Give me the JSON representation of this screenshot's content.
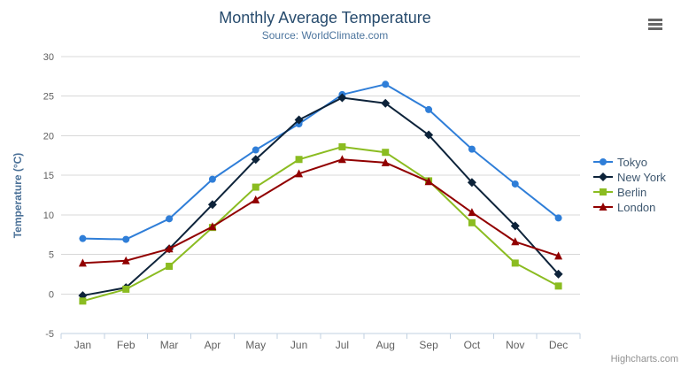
{
  "chart": {
    "credits": "Highcharts.com",
    "menu_icon": "hamburger-icon"
  },
  "chart_data": {
    "type": "line",
    "title": "Monthly Average Temperature",
    "subtitle": "Source: WorldClimate.com",
    "categories": [
      "Jan",
      "Feb",
      "Mar",
      "Apr",
      "May",
      "Jun",
      "Jul",
      "Aug",
      "Sep",
      "Oct",
      "Nov",
      "Dec"
    ],
    "series": [
      {
        "name": "Tokyo",
        "color": "#2f7ed8",
        "marker": "circle",
        "values": [
          7.0,
          6.9,
          9.5,
          14.5,
          18.2,
          21.5,
          25.2,
          26.5,
          23.3,
          18.3,
          13.9,
          9.6
        ]
      },
      {
        "name": "New York",
        "color": "#0d233a",
        "marker": "diamond",
        "values": [
          -0.2,
          0.8,
          5.7,
          11.3,
          17.0,
          22.0,
          24.8,
          24.1,
          20.1,
          14.1,
          8.6,
          2.5
        ]
      },
      {
        "name": "Berlin",
        "color": "#8bbc21",
        "marker": "square",
        "values": [
          -0.9,
          0.6,
          3.5,
          8.4,
          13.5,
          17.0,
          18.6,
          17.9,
          14.3,
          9.0,
          3.9,
          1.0
        ]
      },
      {
        "name": "London",
        "color": "#910000",
        "marker": "triangle",
        "values": [
          3.9,
          4.2,
          5.7,
          8.5,
          11.9,
          15.2,
          17.0,
          16.6,
          14.2,
          10.3,
          6.6,
          4.8
        ]
      }
    ],
    "xlabel": "",
    "ylabel": "Temperature (°C)",
    "ylim": [
      -5,
      30
    ],
    "ytick_step": 5,
    "grid": true,
    "legend_position": "right"
  },
  "colors": {
    "title": "#274b6d",
    "subtitle": "#4d759e",
    "axis_label": "#606060",
    "axis_title": "#4a7097",
    "grid_line": "#d8d8d8",
    "axis_line": "#c0d0e0",
    "legend_text": "#3e576f",
    "credits": "#909090",
    "menu_icon": "#666666",
    "background": "#ffffff"
  }
}
